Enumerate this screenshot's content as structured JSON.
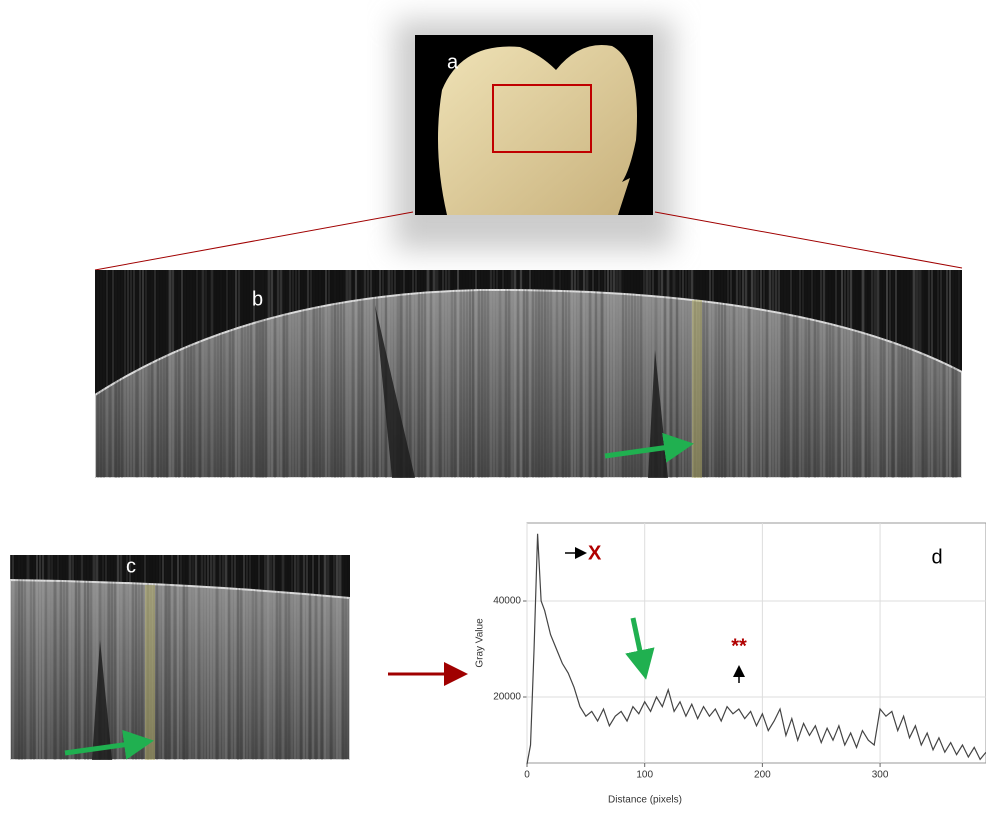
{
  "panels": {
    "a": {
      "label": "a"
    },
    "b": {
      "label": "b"
    },
    "c": {
      "label": "c"
    }
  },
  "chart_data": {
    "type": "line",
    "panel_label": "d",
    "xlabel": "Distance (pixels)",
    "ylabel": "Gray Value",
    "annotations": [
      "X",
      "**"
    ],
    "color": "#444444",
    "x": [
      0,
      3,
      6,
      9,
      12,
      15,
      20,
      25,
      30,
      35,
      40,
      45,
      50,
      55,
      60,
      65,
      70,
      75,
      80,
      85,
      90,
      95,
      100,
      105,
      110,
      115,
      120,
      125,
      130,
      135,
      140,
      145,
      150,
      155,
      160,
      165,
      170,
      175,
      180,
      185,
      190,
      195,
      200,
      205,
      210,
      215,
      220,
      225,
      230,
      235,
      240,
      245,
      250,
      255,
      260,
      265,
      270,
      275,
      280,
      285,
      290,
      295,
      300,
      305,
      310,
      315,
      320,
      325,
      330,
      335,
      340,
      345,
      350,
      355,
      360,
      365,
      370,
      375,
      380,
      385,
      390
    ],
    "values": [
      6000,
      10000,
      30000,
      54000,
      40000,
      38000,
      33000,
      30000,
      27000,
      25000,
      22000,
      18000,
      16000,
      17000,
      15000,
      17500,
      14000,
      16000,
      17000,
      15000,
      18000,
      16500,
      19000,
      17000,
      20000,
      18000,
      21500,
      17000,
      19000,
      16000,
      18500,
      15500,
      18000,
      16000,
      17500,
      15000,
      18000,
      16500,
      17500,
      15500,
      17000,
      14000,
      16500,
      13000,
      15000,
      17500,
      12000,
      15500,
      11000,
      14500,
      12000,
      14000,
      10500,
      13500,
      11000,
      14000,
      10000,
      12500,
      9500,
      13000,
      11000,
      10000,
      17500,
      16000,
      17000,
      13000,
      16000,
      11500,
      14000,
      10000,
      12500,
      9000,
      11500,
      8500,
      10500,
      8000,
      10000,
      7500,
      9500,
      7000,
      8500
    ],
    "xlim": [
      0,
      390
    ],
    "ylim": [
      6250,
      56250
    ],
    "xticks": [
      0,
      100,
      200,
      300
    ],
    "yticks": [
      20000,
      40000
    ],
    "grid": true
  }
}
